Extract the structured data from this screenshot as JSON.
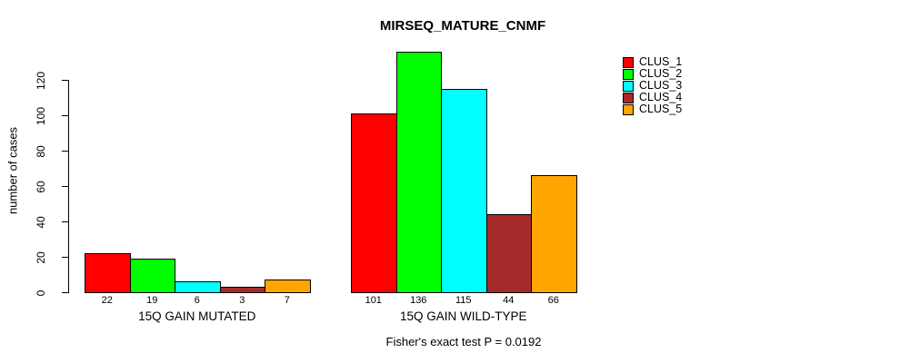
{
  "chart_data": {
    "type": "bar",
    "title": "MIRSEQ_MATURE_CNMF",
    "xlabel": "",
    "ylabel": "number of cases",
    "ylim": [
      0,
      140
    ],
    "yticks": [
      0,
      20,
      40,
      60,
      80,
      100,
      120
    ],
    "grid": false,
    "legend_position": "top-right-outside",
    "categories": [
      "15Q GAIN MUTATED",
      "15Q GAIN WILD-TYPE"
    ],
    "series": [
      {
        "name": "CLUS_1",
        "color": "#FF0000",
        "values": [
          22,
          101
        ]
      },
      {
        "name": "CLUS_2",
        "color": "#00FF00",
        "values": [
          19,
          136
        ]
      },
      {
        "name": "CLUS_3",
        "color": "#00FFFF",
        "values": [
          6,
          115
        ]
      },
      {
        "name": "CLUS_4",
        "color": "#A52A2A",
        "values": [
          3,
          44
        ]
      },
      {
        "name": "CLUS_5",
        "color": "#FFA500",
        "values": [
          7,
          66
        ]
      }
    ],
    "bar_value_labels": true,
    "annotation": "Fisher's exact test P = 0.0192"
  }
}
